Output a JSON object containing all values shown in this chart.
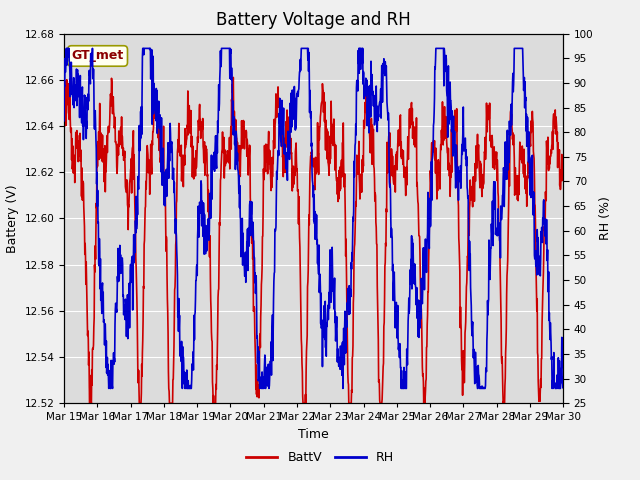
{
  "title": "Battery Voltage and RH",
  "xlabel": "Time",
  "ylabel_left": "Battery (V)",
  "ylabel_right": "RH (%)",
  "annotation": "GT_met",
  "ylim_left": [
    12.52,
    12.68
  ],
  "ylim_right": [
    25,
    100
  ],
  "yticks_left": [
    12.52,
    12.54,
    12.56,
    12.58,
    12.6,
    12.62,
    12.64,
    12.66,
    12.68
  ],
  "yticks_right": [
    25,
    30,
    35,
    40,
    45,
    50,
    55,
    60,
    65,
    70,
    75,
    80,
    85,
    90,
    95,
    100
  ],
  "xtick_labels": [
    "Mar 15",
    "Mar 16",
    "Mar 17",
    "Mar 18",
    "Mar 19",
    "Mar 20",
    "Mar 21",
    "Mar 22",
    "Mar 23",
    "Mar 24",
    "Mar 25",
    "Mar 26",
    "Mar 27",
    "Mar 28",
    "Mar 29",
    "Mar 30"
  ],
  "batt_color": "#cc0000",
  "rh_color": "#0000cc",
  "legend_labels": [
    "BattV",
    "RH"
  ],
  "fig_bg_color": "#f0f0f0",
  "plot_bg_color": "#dcdcdc",
  "annotation_bg": "#fffff0",
  "annotation_border": "#999900",
  "title_fontsize": 12,
  "axis_fontsize": 9,
  "tick_fontsize": 7.5,
  "linewidth": 1.2,
  "n_days": 15,
  "pts_per_day": 96
}
